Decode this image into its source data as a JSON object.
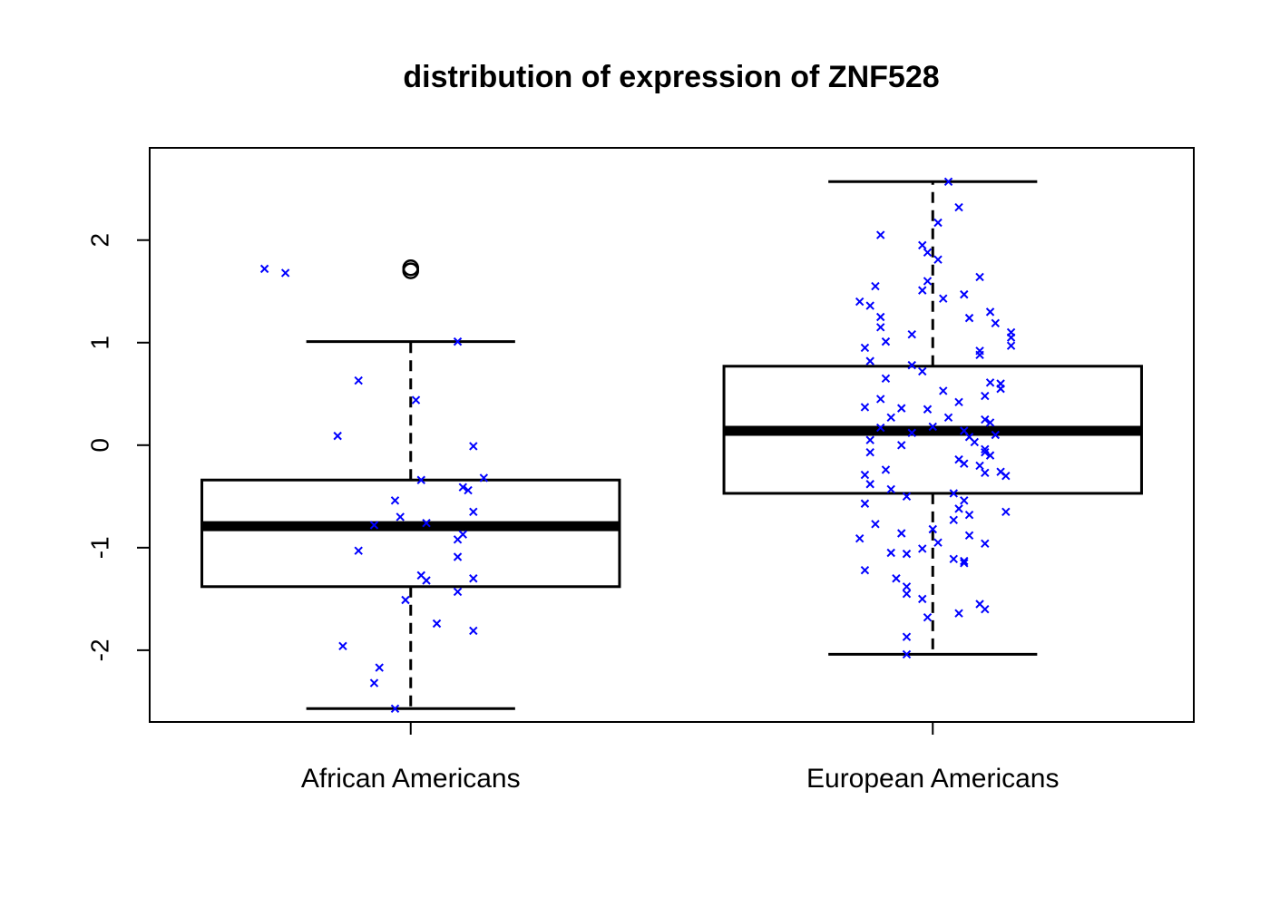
{
  "chart_data": {
    "type": "boxplot",
    "title": "distribution of expression of ZNF528",
    "xlabel": "",
    "ylabel": "",
    "categories": [
      "African Americans",
      "European Americans"
    ],
    "yticks": [
      -2,
      -1,
      0,
      1,
      2
    ],
    "ylim": [
      -2.7,
      2.9
    ],
    "grid": false,
    "legend": "none",
    "colors": {
      "box": "#000000",
      "points": "#0000ff"
    },
    "boxes": [
      {
        "name": "African Americans",
        "whisker_low": -2.57,
        "q1": -1.38,
        "median": -0.79,
        "q3": -0.34,
        "whisker_high": 1.01,
        "outliers": [
          1.7,
          1.73
        ],
        "points": [
          [
            -0.28,
            1.72
          ],
          [
            -0.24,
            1.68
          ],
          [
            0.09,
            1.01
          ],
          [
            -0.1,
            0.63
          ],
          [
            0.01,
            0.44
          ],
          [
            -0.14,
            0.09
          ],
          [
            0.12,
            -0.01
          ],
          [
            0.02,
            -0.34
          ],
          [
            0.14,
            -0.32
          ],
          [
            0.1,
            -0.41
          ],
          [
            0.11,
            -0.44
          ],
          [
            -0.03,
            -0.54
          ],
          [
            0.12,
            -0.65
          ],
          [
            -0.02,
            -0.7
          ],
          [
            -0.07,
            -0.78
          ],
          [
            0.03,
            -0.76
          ],
          [
            0.1,
            -0.87
          ],
          [
            0.09,
            -0.92
          ],
          [
            -0.1,
            -1.03
          ],
          [
            0.09,
            -1.09
          ],
          [
            0.02,
            -1.27
          ],
          [
            0.03,
            -1.32
          ],
          [
            0.12,
            -1.3
          ],
          [
            0.09,
            -1.43
          ],
          [
            -0.01,
            -1.51
          ],
          [
            0.05,
            -1.74
          ],
          [
            0.12,
            -1.81
          ],
          [
            -0.13,
            -1.96
          ],
          [
            -0.06,
            -2.17
          ],
          [
            -0.07,
            -2.32
          ],
          [
            -0.03,
            -2.57
          ]
        ]
      },
      {
        "name": "European Americans",
        "whisker_low": -2.04,
        "q1": -0.47,
        "median": 0.14,
        "q3": 0.77,
        "whisker_high": 2.57,
        "outliers": [],
        "points": [
          [
            0.03,
            2.57
          ],
          [
            0.05,
            2.32
          ],
          [
            0.01,
            2.17
          ],
          [
            -0.1,
            2.05
          ],
          [
            -0.02,
            1.95
          ],
          [
            -0.01,
            1.88
          ],
          [
            0.01,
            1.81
          ],
          [
            0.09,
            1.64
          ],
          [
            -0.11,
            1.55
          ],
          [
            -0.01,
            1.6
          ],
          [
            -0.02,
            1.51
          ],
          [
            0.06,
            1.47
          ],
          [
            0.02,
            1.43
          ],
          [
            -0.14,
            1.4
          ],
          [
            -0.12,
            1.36
          ],
          [
            0.11,
            1.3
          ],
          [
            0.07,
            1.24
          ],
          [
            -0.1,
            1.25
          ],
          [
            -0.1,
            1.15
          ],
          [
            0.12,
            1.19
          ],
          [
            0.15,
            1.1
          ],
          [
            0.15,
            1.05
          ],
          [
            -0.04,
            1.08
          ],
          [
            -0.09,
            1.01
          ],
          [
            0.15,
            0.97
          ],
          [
            -0.13,
            0.95
          ],
          [
            0.09,
            0.92
          ],
          [
            0.09,
            0.88
          ],
          [
            -0.12,
            0.82
          ],
          [
            -0.04,
            0.78
          ],
          [
            -0.02,
            0.72
          ],
          [
            -0.09,
            0.65
          ],
          [
            0.11,
            0.61
          ],
          [
            0.13,
            0.6
          ],
          [
            0.13,
            0.55
          ],
          [
            0.02,
            0.53
          ],
          [
            0.1,
            0.48
          ],
          [
            -0.1,
            0.45
          ],
          [
            0.05,
            0.42
          ],
          [
            -0.13,
            0.37
          ],
          [
            -0.06,
            0.36
          ],
          [
            -0.01,
            0.35
          ],
          [
            -0.08,
            0.27
          ],
          [
            0.03,
            0.27
          ],
          [
            0.1,
            0.25
          ],
          [
            0.11,
            0.22
          ],
          [
            -0.1,
            0.17
          ],
          [
            0.06,
            0.14
          ],
          [
            0.0,
            0.18
          ],
          [
            -0.04,
            0.12
          ],
          [
            0.12,
            0.1
          ],
          [
            0.07,
            0.08
          ],
          [
            -0.12,
            0.05
          ],
          [
            0.08,
            0.03
          ],
          [
            -0.06,
            0.0
          ],
          [
            0.1,
            -0.04
          ],
          [
            0.1,
            -0.07
          ],
          [
            0.11,
            -0.1
          ],
          [
            -0.12,
            -0.07
          ],
          [
            0.05,
            -0.14
          ],
          [
            0.06,
            -0.18
          ],
          [
            0.09,
            -0.2
          ],
          [
            -0.09,
            -0.24
          ],
          [
            0.13,
            -0.26
          ],
          [
            0.1,
            -0.27
          ],
          [
            0.14,
            -0.3
          ],
          [
            -0.13,
            -0.29
          ],
          [
            -0.12,
            -0.38
          ],
          [
            -0.08,
            -0.43
          ],
          [
            0.04,
            -0.47
          ],
          [
            -0.05,
            -0.5
          ],
          [
            0.06,
            -0.54
          ],
          [
            -0.13,
            -0.57
          ],
          [
            0.05,
            -0.62
          ],
          [
            0.14,
            -0.65
          ],
          [
            0.07,
            -0.68
          ],
          [
            0.04,
            -0.73
          ],
          [
            -0.11,
            -0.77
          ],
          [
            0.0,
            -0.82
          ],
          [
            -0.06,
            -0.86
          ],
          [
            0.07,
            -0.88
          ],
          [
            -0.14,
            -0.91
          ],
          [
            0.01,
            -0.95
          ],
          [
            0.1,
            -0.96
          ],
          [
            -0.02,
            -1.01
          ],
          [
            -0.08,
            -1.05
          ],
          [
            -0.05,
            -1.06
          ],
          [
            0.04,
            -1.11
          ],
          [
            0.06,
            -1.13
          ],
          [
            0.06,
            -1.15
          ],
          [
            -0.13,
            -1.22
          ],
          [
            -0.07,
            -1.3
          ],
          [
            -0.05,
            -1.38
          ],
          [
            -0.05,
            -1.45
          ],
          [
            -0.02,
            -1.5
          ],
          [
            0.09,
            -1.55
          ],
          [
            0.1,
            -1.6
          ],
          [
            0.05,
            -1.64
          ],
          [
            -0.01,
            -1.68
          ],
          [
            -0.05,
            -1.87
          ],
          [
            -0.05,
            -2.04
          ]
        ]
      }
    ]
  }
}
